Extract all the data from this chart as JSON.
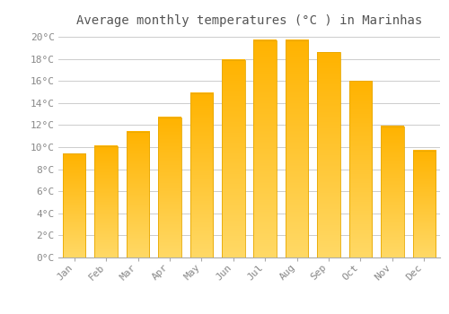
{
  "title": "Average monthly temperatures (°C ) in Marinhas",
  "months": [
    "Jan",
    "Feb",
    "Mar",
    "Apr",
    "May",
    "Jun",
    "Jul",
    "Aug",
    "Sep",
    "Oct",
    "Nov",
    "Dec"
  ],
  "temperatures": [
    9.4,
    10.1,
    11.4,
    12.7,
    14.9,
    17.9,
    19.7,
    19.7,
    18.6,
    16.0,
    11.9,
    9.7
  ],
  "bar_color_top": "#FFB300",
  "bar_color_bottom": "#FFD966",
  "bar_edge_color": "#E8A800",
  "background_color": "#FFFFFF",
  "plot_bg_color": "#FFFFFF",
  "grid_color": "#CCCCCC",
  "title_color": "#555555",
  "tick_label_color": "#888888",
  "ylim": [
    0,
    20.5
  ],
  "ytick_values": [
    0,
    2,
    4,
    6,
    8,
    10,
    12,
    14,
    16,
    18,
    20
  ],
  "title_fontsize": 10,
  "tick_fontsize": 8,
  "font_family": "monospace"
}
